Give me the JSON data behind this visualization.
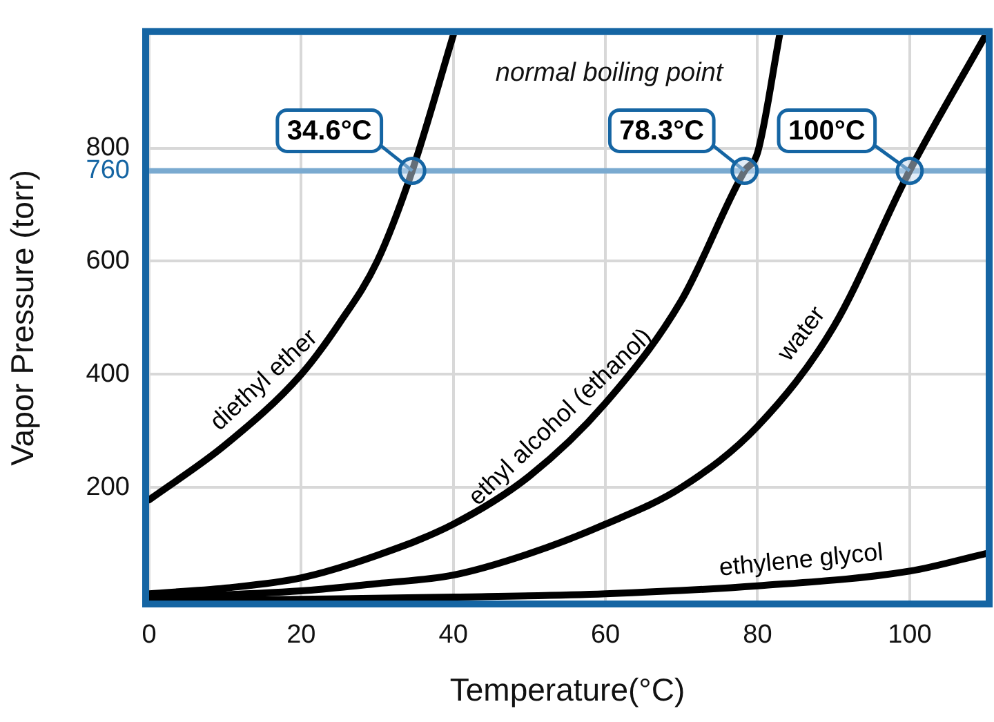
{
  "chart_data": {
    "type": "line",
    "xlabel": "Temperature(°C)",
    "ylabel": "Vapor Pressure (torr)",
    "xlim": [
      0,
      110
    ],
    "xticks": [
      0,
      20,
      40,
      60,
      80,
      100
    ],
    "ylim": [
      0,
      1000
    ],
    "yticks": [
      200,
      400,
      600,
      800
    ],
    "grid": true,
    "legend": false,
    "marker": "none",
    "line_style": "solid",
    "series": [
      {
        "name": "diethyl ether",
        "color": "#000000",
        "x": [
          0,
          10,
          20,
          25,
          30,
          34.6,
          40
        ],
        "values": [
          178,
          275,
          400,
          490,
          600,
          760,
          1000
        ]
      },
      {
        "name": "ethyl alcohol (ethanol)",
        "color": "#000000",
        "x": [
          0,
          10,
          20,
          30,
          40,
          50,
          60,
          70,
          78.3,
          80,
          82.9
        ],
        "values": [
          12,
          22,
          40,
          80,
          135,
          220,
          349,
          531,
          760,
          792,
          1000
        ]
      },
      {
        "name": "water",
        "color": "#000000",
        "x": [
          0,
          20,
          30,
          40,
          50,
          60,
          70,
          80,
          90,
          100,
          110
        ],
        "values": [
          5,
          17,
          30,
          45,
          83,
          135,
          200,
          308,
          484,
          760,
          1000
        ]
      },
      {
        "name": "ethylene glycol",
        "color": "#000000",
        "x": [
          0,
          20,
          40,
          60,
          80,
          100,
          110
        ],
        "values": [
          0,
          2,
          6,
          12,
          26,
          52,
          83
        ]
      }
    ],
    "ref_lines": [
      {
        "axis": "y",
        "value": 760,
        "label": "760",
        "color": "#7aaad0"
      }
    ],
    "annotations": [
      "normal boiling point",
      {
        "text": "34.6°C",
        "x": 34.6,
        "y": 760
      },
      {
        "text": "78.3°C",
        "x": 78.3,
        "y": 760
      },
      {
        "text": "100°C",
        "x": 100,
        "y": 760
      }
    ]
  }
}
